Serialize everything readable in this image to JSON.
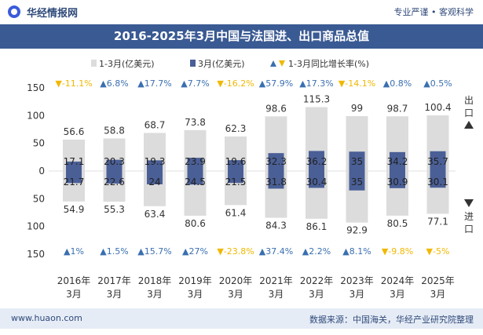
{
  "header": {
    "brand": "华经情报网",
    "slogan": "专业严谨 • 客观科学"
  },
  "title": "2016-2025年3月中国与法国进、出口商品总值",
  "legend": {
    "cumulative": "1-3月(亿美元)",
    "monthly": "3月(亿美元)",
    "growth": "1-3月同比增长率(%)"
  },
  "side_labels": {
    "export": "出口",
    "import": "进口"
  },
  "footer": {
    "website": "www.huaon.com",
    "source": "数据来源：中国海关，华经产业研究院整理"
  },
  "chart_data": {
    "type": "bar",
    "categories": [
      "2016年3月",
      "2017年3月",
      "2018年3月",
      "2019年3月",
      "2020年3月",
      "2021年3月",
      "2022年3月",
      "2023年3月",
      "2024年3月",
      "2025年3月"
    ],
    "y_tick_labels": [
      "150",
      "100",
      "50",
      "0",
      "50",
      "100",
      "150"
    ],
    "ylim": [
      -150,
      150
    ],
    "series": [
      {
        "name": "出口 1-3月(亿美元)",
        "values": [
          56.6,
          58.8,
          68.7,
          73.8,
          62.3,
          98.6,
          115.3,
          99,
          98.7,
          100.4
        ]
      },
      {
        "name": "出口 3月(亿美元)",
        "values": [
          17.1,
          20.3,
          19.3,
          23.9,
          19.6,
          32.3,
          36.2,
          35,
          34.2,
          35.7
        ]
      },
      {
        "name": "进口 1-3月(亿美元)",
        "values": [
          54.9,
          55.3,
          63.4,
          80.6,
          61.4,
          84.3,
          86.1,
          92.9,
          80.5,
          77.1
        ]
      },
      {
        "name": "进口 3月(亿美元)",
        "values": [
          21.7,
          22.6,
          24,
          24.5,
          21.5,
          31.8,
          30.4,
          35,
          30.9,
          30.1
        ]
      },
      {
        "name": "出口 1-3月同比增长率(%)",
        "values": [
          -11.1,
          6.8,
          17.7,
          7.7,
          -16.2,
          57.9,
          17.3,
          -14.1,
          0.8,
          0.5
        ]
      },
      {
        "name": "进口 1-3月同比增长率(%)",
        "values": [
          1,
          1.5,
          15.7,
          27,
          -23.8,
          37.4,
          2.2,
          8.1,
          -9.8,
          -5
        ]
      }
    ],
    "colors": {
      "cumulative": "#dcdcdc",
      "monthly": "#4a5f96",
      "up": "#3a6fb0",
      "down": "#f0b800"
    }
  }
}
